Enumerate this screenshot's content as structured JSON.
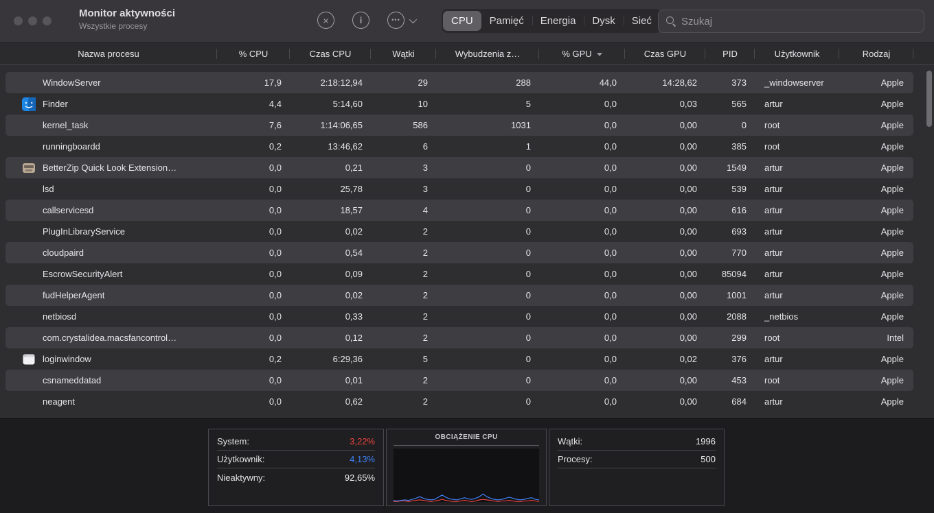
{
  "window": {
    "title": "Monitor aktywności",
    "subtitle": "Wszystkie procesy"
  },
  "toolbar": {
    "stop_process_icon": "x-circle",
    "inspect_icon": "info-circle",
    "more_options_icon": "ellipsis-circle",
    "tabs": [
      "CPU",
      "Pamięć",
      "Energia",
      "Dysk",
      "Sieć"
    ],
    "active_tab": "CPU",
    "search_placeholder": "Szukaj"
  },
  "table": {
    "columns": [
      "Nazwa procesu",
      "% CPU",
      "Czas CPU",
      "Wątki",
      "Wybudzenia z…",
      "% GPU",
      "Czas GPU",
      "PID",
      "Użytkownik",
      "Rodzaj"
    ],
    "sort_column": "% GPU",
    "sort_direction": "descending",
    "rows": [
      {
        "name": "WindowServer",
        "icon": null,
        "cpu": "17,9",
        "cpu_time": "2:18:12,94",
        "threads": "29",
        "idle_wake": "288",
        "gpu": "44,0",
        "gpu_time": "14:28,62",
        "pid": "373",
        "user": "_windowserver",
        "kind": "Apple"
      },
      {
        "name": "Finder",
        "icon": "finder",
        "cpu": "4,4",
        "cpu_time": "5:14,60",
        "threads": "10",
        "idle_wake": "5",
        "gpu": "0,0",
        "gpu_time": "0,03",
        "pid": "565",
        "user": "artur",
        "kind": "Apple"
      },
      {
        "name": "kernel_task",
        "icon": null,
        "cpu": "7,6",
        "cpu_time": "1:14:06,65",
        "threads": "586",
        "idle_wake": "1031",
        "gpu": "0,0",
        "gpu_time": "0,00",
        "pid": "0",
        "user": "root",
        "kind": "Apple"
      },
      {
        "name": "runningboardd",
        "icon": null,
        "cpu": "0,2",
        "cpu_time": "13:46,62",
        "threads": "6",
        "idle_wake": "1",
        "gpu": "0,0",
        "gpu_time": "0,00",
        "pid": "385",
        "user": "root",
        "kind": "Apple"
      },
      {
        "name": "BetterZip Quick Look Extension…",
        "icon": "betterzip",
        "cpu": "0,0",
        "cpu_time": "0,21",
        "threads": "3",
        "idle_wake": "0",
        "gpu": "0,0",
        "gpu_time": "0,00",
        "pid": "1549",
        "user": "artur",
        "kind": "Apple"
      },
      {
        "name": "lsd",
        "icon": null,
        "cpu": "0,0",
        "cpu_time": "25,78",
        "threads": "3",
        "idle_wake": "0",
        "gpu": "0,0",
        "gpu_time": "0,00",
        "pid": "539",
        "user": "artur",
        "kind": "Apple"
      },
      {
        "name": "callservicesd",
        "icon": null,
        "cpu": "0,0",
        "cpu_time": "18,57",
        "threads": "4",
        "idle_wake": "0",
        "gpu": "0,0",
        "gpu_time": "0,00",
        "pid": "616",
        "user": "artur",
        "kind": "Apple"
      },
      {
        "name": "PlugInLibraryService",
        "icon": null,
        "cpu": "0,0",
        "cpu_time": "0,02",
        "threads": "2",
        "idle_wake": "0",
        "gpu": "0,0",
        "gpu_time": "0,00",
        "pid": "693",
        "user": "artur",
        "kind": "Apple"
      },
      {
        "name": "cloudpaird",
        "icon": null,
        "cpu": "0,0",
        "cpu_time": "0,54",
        "threads": "2",
        "idle_wake": "0",
        "gpu": "0,0",
        "gpu_time": "0,00",
        "pid": "770",
        "user": "artur",
        "kind": "Apple"
      },
      {
        "name": "EscrowSecurityAlert",
        "icon": null,
        "cpu": "0,0",
        "cpu_time": "0,09",
        "threads": "2",
        "idle_wake": "0",
        "gpu": "0,0",
        "gpu_time": "0,00",
        "pid": "85094",
        "user": "artur",
        "kind": "Apple"
      },
      {
        "name": "fudHelperAgent",
        "icon": null,
        "cpu": "0,0",
        "cpu_time": "0,02",
        "threads": "2",
        "idle_wake": "0",
        "gpu": "0,0",
        "gpu_time": "0,00",
        "pid": "1001",
        "user": "artur",
        "kind": "Apple"
      },
      {
        "name": "netbiosd",
        "icon": null,
        "cpu": "0,0",
        "cpu_time": "0,33",
        "threads": "2",
        "idle_wake": "0",
        "gpu": "0,0",
        "gpu_time": "0,00",
        "pid": "2088",
        "user": "_netbios",
        "kind": "Apple"
      },
      {
        "name": "com.crystalidea.macsfancontrol…",
        "icon": null,
        "cpu": "0,0",
        "cpu_time": "0,12",
        "threads": "2",
        "idle_wake": "0",
        "gpu": "0,0",
        "gpu_time": "0,00",
        "pid": "299",
        "user": "root",
        "kind": "Intel"
      },
      {
        "name": "loginwindow",
        "icon": "loginwindow",
        "cpu": "0,2",
        "cpu_time": "6:29,36",
        "threads": "5",
        "idle_wake": "0",
        "gpu": "0,0",
        "gpu_time": "0,02",
        "pid": "376",
        "user": "artur",
        "kind": "Apple"
      },
      {
        "name": "csnameddatad",
        "icon": null,
        "cpu": "0,0",
        "cpu_time": "0,01",
        "threads": "2",
        "idle_wake": "0",
        "gpu": "0,0",
        "gpu_time": "0,00",
        "pid": "453",
        "user": "root",
        "kind": "Apple"
      },
      {
        "name": "neagent",
        "icon": null,
        "cpu": "0,0",
        "cpu_time": "0,62",
        "threads": "2",
        "idle_wake": "0",
        "gpu": "0,0",
        "gpu_time": "0,00",
        "pid": "684",
        "user": "artur",
        "kind": "Apple"
      }
    ]
  },
  "footer": {
    "system_label": "System:",
    "system_value": "3,22%",
    "user_label": "Użytkownik:",
    "user_value": "4,13%",
    "idle_label": "Nieaktywny:",
    "idle_value": "92,65%",
    "threads_label": "Wątki:",
    "threads_value": "1996",
    "processes_label": "Procesy:",
    "processes_value": "500"
  },
  "colors": {
    "system_red": "#e8453f",
    "user_blue": "#3f82f7"
  },
  "chart_data": {
    "type": "line",
    "title": "OBCIĄŻENIE CPU",
    "ylim": [
      0,
      100
    ],
    "legend_position": "none",
    "grid": false,
    "series": [
      {
        "name": "Użytkownik",
        "color": "#3f82f7",
        "values": [
          3,
          2,
          3,
          4,
          3,
          5,
          7,
          10,
          7,
          5,
          4,
          5,
          9,
          13,
          9,
          6,
          5,
          4,
          6,
          8,
          6,
          5,
          7,
          10,
          15,
          10,
          7,
          5,
          4,
          5,
          7,
          9,
          7,
          5,
          4,
          5,
          7,
          8,
          5,
          4
        ]
      },
      {
        "name": "System",
        "color": "#e8453f",
        "values": [
          1,
          1,
          2,
          2,
          1,
          2,
          3,
          4,
          3,
          2,
          1,
          2,
          3,
          5,
          3,
          2,
          1,
          1,
          2,
          3,
          2,
          1,
          2,
          4,
          5,
          4,
          3,
          2,
          1,
          2,
          2,
          3,
          2,
          1,
          1,
          2,
          2,
          3,
          2,
          1
        ]
      }
    ]
  }
}
